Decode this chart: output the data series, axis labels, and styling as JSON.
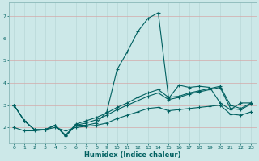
{
  "xlabel": "Humidex (Indice chaleur)",
  "bg_color": "#cce8e8",
  "grid_color": "#b8d8d8",
  "grid_red_color": "#d4a8a8",
  "line_color": "#006060",
  "xlim": [
    -0.5,
    23.5
  ],
  "ylim": [
    1.3,
    7.6
  ],
  "yticks": [
    2,
    3,
    4,
    5,
    6,
    7
  ],
  "xticks": [
    0,
    1,
    2,
    3,
    4,
    5,
    6,
    7,
    8,
    9,
    10,
    11,
    12,
    13,
    14,
    15,
    16,
    17,
    18,
    19,
    20,
    21,
    22,
    23
  ],
  "series1_y": [
    3.0,
    2.3,
    1.9,
    1.9,
    2.1,
    1.6,
    2.1,
    2.1,
    2.2,
    2.7,
    4.6,
    5.4,
    6.3,
    6.9,
    7.15,
    3.3,
    3.9,
    3.8,
    3.85,
    3.8,
    3.1,
    2.8,
    3.1,
    3.1
  ],
  "series2_y": [
    3.0,
    2.3,
    1.9,
    1.9,
    2.1,
    1.65,
    2.1,
    2.2,
    2.35,
    2.55,
    2.8,
    3.0,
    3.2,
    3.4,
    3.55,
    3.25,
    3.35,
    3.5,
    3.6,
    3.7,
    3.8,
    2.85,
    2.8,
    3.05
  ],
  "series3_y": [
    3.0,
    2.3,
    1.9,
    1.9,
    2.1,
    1.65,
    2.15,
    2.3,
    2.45,
    2.65,
    2.9,
    3.1,
    3.35,
    3.55,
    3.7,
    3.35,
    3.4,
    3.55,
    3.65,
    3.75,
    3.85,
    3.0,
    2.85,
    3.1
  ],
  "series4_y": [
    2.0,
    1.85,
    1.85,
    1.9,
    2.0,
    1.85,
    2.0,
    2.05,
    2.1,
    2.2,
    2.4,
    2.55,
    2.7,
    2.85,
    2.9,
    2.75,
    2.8,
    2.85,
    2.9,
    2.95,
    3.0,
    2.6,
    2.55,
    2.7
  ]
}
